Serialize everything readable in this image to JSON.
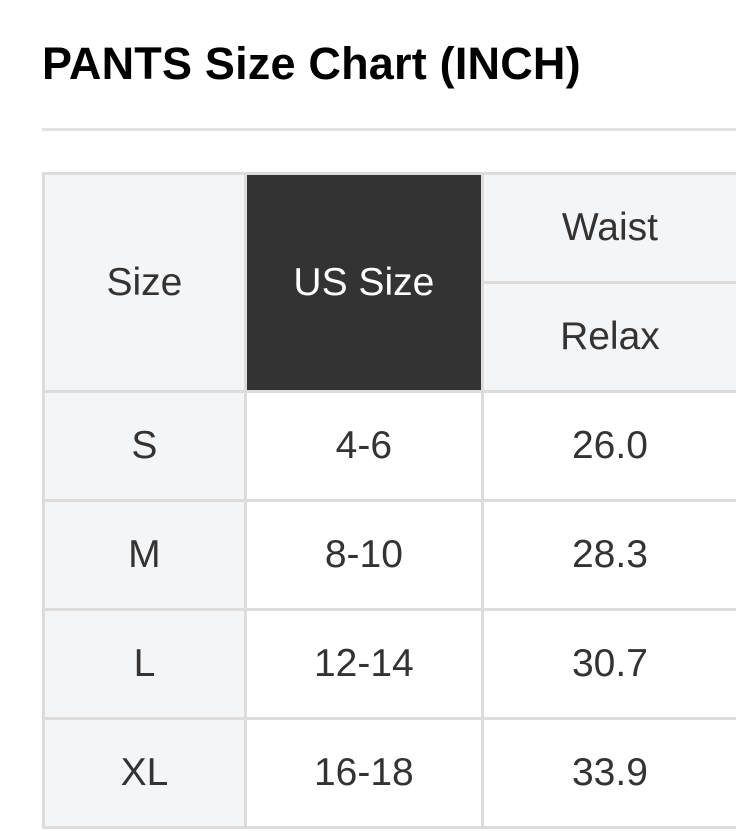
{
  "title": "PANTS Size Chart (INCH)",
  "table": {
    "headers": {
      "size": "Size",
      "us_size": "US Size",
      "waist": "Waist",
      "waist_sub": "Relax"
    },
    "rows": [
      {
        "size": "S",
        "us_size": "4-6",
        "waist_relax": "26.0"
      },
      {
        "size": "M",
        "us_size": "8-10",
        "waist_relax": "28.3"
      },
      {
        "size": "L",
        "us_size": "12-14",
        "waist_relax": "30.7"
      },
      {
        "size": "XL",
        "us_size": "16-18",
        "waist_relax": "33.9"
      }
    ]
  },
  "colors": {
    "header_dark": "#333333",
    "header_light": "#f4f5f7",
    "border": "#dcdcdc"
  }
}
